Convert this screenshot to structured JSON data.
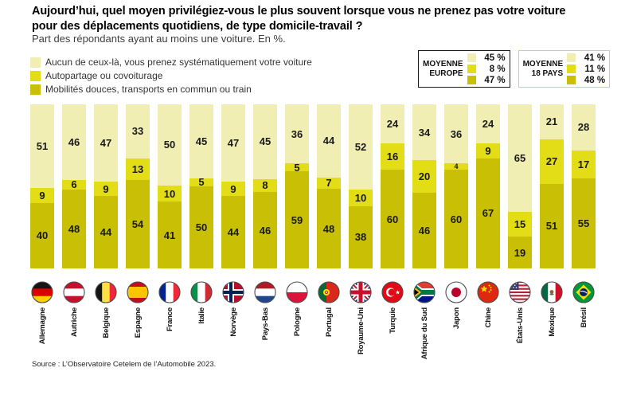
{
  "title": [
    "Aujourd’hui, quel moyen privilégiez-vous le plus souvent lorsque vous ne prenez pas votre voiture",
    "pour des déplacements quotidiens, de type domicile-travail ?"
  ],
  "subtitle": "Part des répondants ayant au moins une voiture. En %.",
  "legend": [
    {
      "label": "Aucun de ceux-là, vous prenez systématiquement votre voiture",
      "color": "#f1eeb4"
    },
    {
      "label": "Autopartage ou covoiturage",
      "color": "#e2dd17"
    },
    {
      "label": "Mobilités douces, transports en commun ou train",
      "color": "#c9c006"
    }
  ],
  "averages": [
    {
      "label": [
        "MOYENNE",
        "EUROPE"
      ],
      "values": [
        "45 %",
        "8 %",
        "47 %"
      ],
      "border_color": "#1a1a1a"
    },
    {
      "label": [
        "MOYENNE",
        "18 PAYS"
      ],
      "values": [
        "41 %",
        "11 %",
        "48 %"
      ],
      "border_color": "#e2dd17"
    }
  ],
  "chart_data": {
    "type": "bar",
    "stacked": true,
    "orientation": "vertical",
    "unit": "%",
    "ylim": [
      0,
      100
    ],
    "value_labels": true,
    "legend_position": "top-left",
    "categories": [
      "Allemagne",
      "Autriche",
      "Belgique",
      "Espagne",
      "France",
      "Italie",
      "Norvège",
      "Pays-Bas",
      "Pologne",
      "Portugal",
      "Royaume-Uni",
      "Turquie",
      "Afrique du Sud",
      "Japon",
      "Chine",
      "États-Unis",
      "Mexique",
      "Brésil"
    ],
    "flags": [
      "de",
      "at",
      "be",
      "es",
      "fr",
      "it",
      "no",
      "nl",
      "pl",
      "pt",
      "gb",
      "tr",
      "za",
      "jp",
      "cn",
      "us",
      "mx",
      "br"
    ],
    "series": [
      {
        "name": "Aucun de ceux-là, vous prenez systématiquement votre voiture",
        "color": "#f1eeb4",
        "values": [
          51,
          46,
          47,
          33,
          50,
          45,
          47,
          45,
          36,
          44,
          52,
          24,
          34,
          36,
          24,
          65,
          21,
          28
        ]
      },
      {
        "name": "Autopartage ou covoiturage",
        "color": "#e2dd17",
        "values": [
          9,
          6,
          9,
          13,
          10,
          5,
          9,
          8,
          5,
          7,
          10,
          16,
          20,
          4,
          9,
          15,
          27,
          17
        ]
      },
      {
        "name": "Mobilités douces, transports en commun ou train",
        "color": "#c9c006",
        "values": [
          40,
          48,
          44,
          54,
          41,
          50,
          44,
          46,
          59,
          48,
          38,
          60,
          46,
          60,
          67,
          19,
          51,
          55
        ]
      }
    ]
  },
  "source": "Source : L’Observatoire Cetelem de l’Automobile 2023."
}
